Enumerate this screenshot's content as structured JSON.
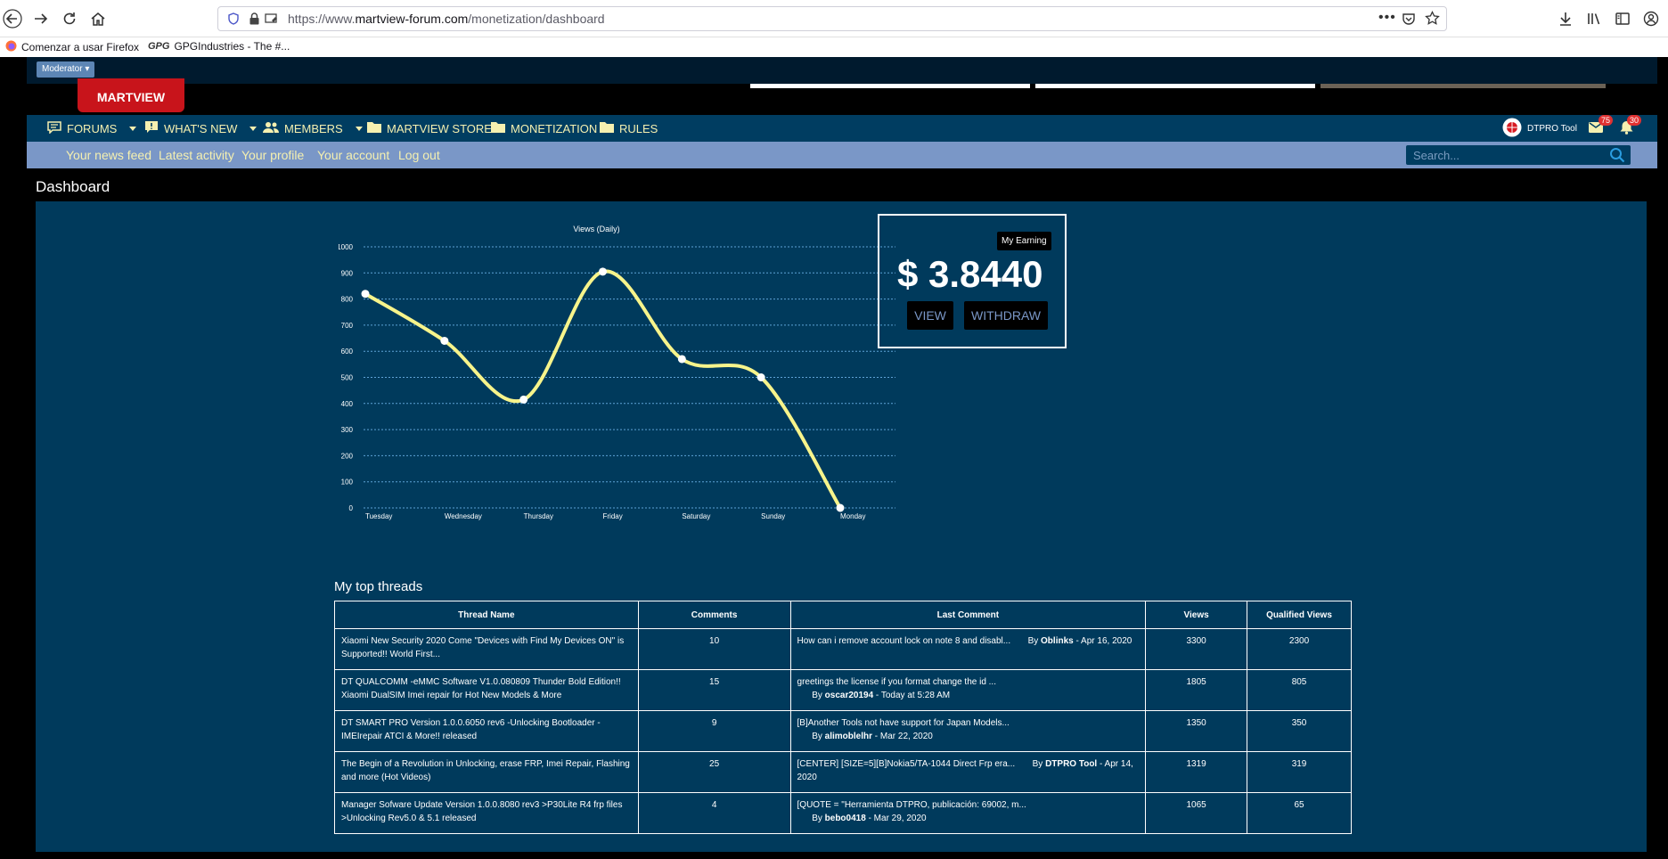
{
  "browser": {
    "url_prefix": "https://www.",
    "url_host": "martview-forum.com",
    "url_path": "/monetization/dashboard",
    "bookmarks": [
      "Comenzar a usar Firefox",
      "GPGIndustries - The #..."
    ]
  },
  "header": {
    "moderator_label": "Moderator",
    "logo_text": "MARTVIEW"
  },
  "main_nav": {
    "items": [
      "FORUMS",
      "WHAT'S NEW",
      "MEMBERS",
      "MARTVIEW STORE",
      "MONETIZATION",
      "RULES"
    ],
    "user_name": "DTPRO Tool",
    "inbox_count": "75",
    "alerts_count": "30"
  },
  "sub_nav": {
    "links": [
      "Your news feed",
      "Latest activity",
      "Your profile",
      "Your account",
      "Log out"
    ],
    "search_placeholder": "Search..."
  },
  "page_title": "Dashboard",
  "earning": {
    "tag": "My Earning",
    "amount": "$ 3.8440",
    "view_label": "VIEW",
    "withdraw_label": "WITHDRAW"
  },
  "chart_data": {
    "type": "line",
    "title": "Views (Daily)",
    "categories": [
      "Tuesday",
      "Wednesday",
      "Thursday",
      "Friday",
      "Saturday",
      "Sunday",
      "Monday"
    ],
    "series": [
      {
        "values": [
          820,
          640,
          415,
          905,
          570,
          500,
          0
        ]
      }
    ],
    "ylim": [
      0,
      1000
    ],
    "yticks": [
      0,
      100,
      200,
      300,
      400,
      500,
      600,
      700,
      800,
      900,
      1000
    ],
    "grid": true,
    "line_color": "#f7f48b",
    "point_color": "#ffffff"
  },
  "threads": {
    "title": "My top threads",
    "headers": [
      "Thread Name",
      "Comments",
      "Last Comment",
      "Views",
      "Qualified Views"
    ],
    "rows": [
      {
        "name": "Xiaomi New Security 2020 Come \"Devices with Find My Devices ON\" is Supported!! World First...",
        "comments": "10",
        "last_text": "How can i remove account lock on note 8 and disabl...",
        "last_by": "By ",
        "last_user": "Oblinks",
        "last_date": " - Apr 16, 2020",
        "views": "3300",
        "qualified": "2300"
      },
      {
        "name": "DT QUALCOMM -eMMC Software V1.0.080809 Thunder Bold Edition!! Xiaomi DualSIM Imei repair for Hot New Models & More",
        "comments": "15",
        "last_text": "greetings the license if you format change the id ...",
        "last_by": "By ",
        "last_user": "oscar20194",
        "last_date": " - Today at 5:28 AM",
        "views": "1805",
        "qualified": "805"
      },
      {
        "name": "DT SMART PRO Version 1.0.0.6050 rev6 -Unlocking Bootloader -IMEIrepair ATCI & More!! released",
        "comments": "9",
        "last_text": "[B]Another Tools not have support for Japan Models...",
        "last_by": "By ",
        "last_user": "alimoblelhr",
        "last_date": " - Mar 22, 2020",
        "views": "1350",
        "qualified": "350"
      },
      {
        "name": "The Begin of a Revolution in Unlocking, erase FRP, Imei Repair, Flashing and more (Hot Videos)",
        "comments": "25",
        "last_text": "[CENTER] [SIZE=5][B]Nokia5/TA-1044 Direct Frp era...",
        "last_by": "By ",
        "last_user": "DTPRO Tool",
        "last_date": " - Apr 14, 2020",
        "views": "1319",
        "qualified": "319"
      },
      {
        "name": "Manager Sofware Update Version 1.0.0.8080 rev3 >P30Lite R4 frp files >Unlocking Rev5.0 & 5.1 released",
        "comments": "4",
        "last_text": "[QUOTE = \"Herramienta DTPRO, publicación: 69002, m...",
        "last_by": "By ",
        "last_user": "bebo0418",
        "last_date": " - Mar 29, 2020",
        "views": "1065",
        "qualified": "65"
      }
    ]
  }
}
